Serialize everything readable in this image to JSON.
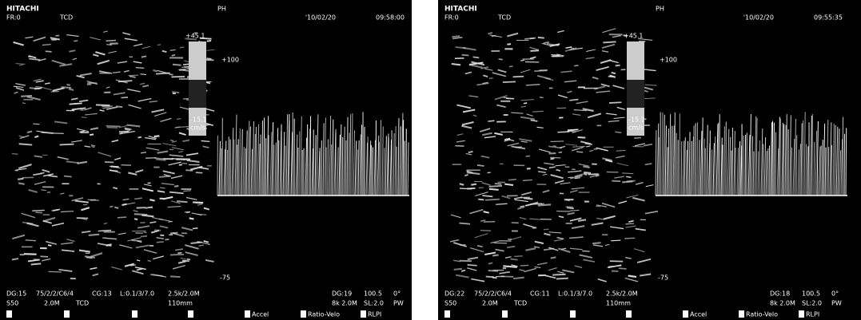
{
  "panels": [
    {
      "brand": "HITACHI",
      "mode": "FR:0",
      "probe": "TCD",
      "mark": "PH",
      "date": "'10/02/20",
      "time": "09:58:00",
      "scale": {
        "top": "+45.1",
        "mid": "+100",
        "low": "-15.1",
        "unit": "cm/s",
        "bottom": "-75"
      },
      "info": [
        "DG:15",
        "75/2/2/C6/4",
        "CG:13",
        "L:0.1/3/7.0",
        "2.5k/2.0M",
        "S50",
        "2.0M",
        "TCD",
        "110mm"
      ],
      "doppler_info": [
        "DG:19",
        "100.5",
        "0°",
        "8k 2.0M",
        "SL:2.0",
        "PW"
      ],
      "softkeys": [
        "Accel",
        "Ratio-Velo",
        "RLPI"
      ]
    },
    {
      "brand": "HITACHI",
      "mode": "FR:0",
      "probe": "TCD",
      "mark": "PH",
      "date": "'10/02/20",
      "time": "09:55:35",
      "scale": {
        "top": "+45.1",
        "mid": "+100",
        "low": "-15.1",
        "unit": "cm/s",
        "bottom": "-75"
      },
      "info": [
        "DG:22",
        "75/2/2/C6/4",
        "CG:11",
        "L:0.1/3/7.0",
        "2.5k/2.0M",
        "S50",
        "2.0M",
        "TCD",
        "110mm"
      ],
      "doppler_info": [
        "DG:18",
        "100.5",
        "0°",
        "8k 2.0M",
        "SL:2.0",
        "PW"
      ],
      "softkeys": [
        "Accel",
        "Ratio-Velo",
        "RLPI"
      ]
    }
  ]
}
